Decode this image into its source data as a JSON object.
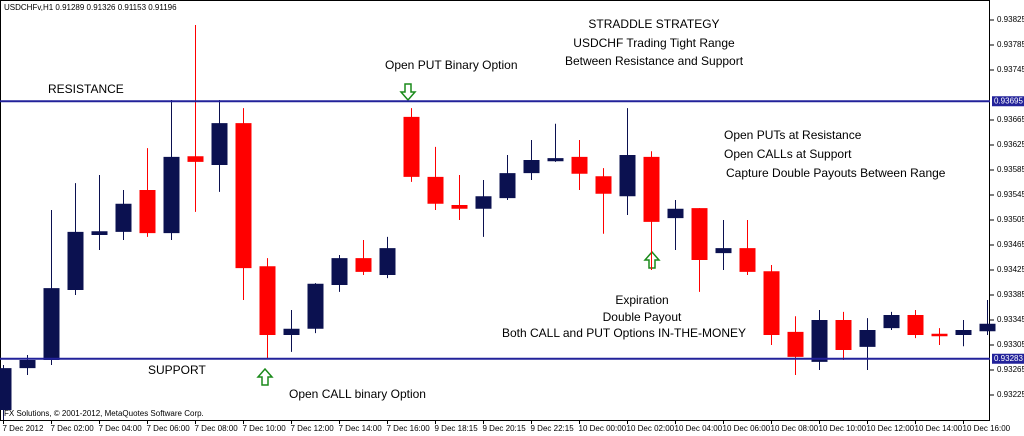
{
  "chart_data": {
    "type": "candlestick",
    "title": "USDCHFv,H1  0.91289 0.91326 0.91153 0.91196",
    "categories": [
      "7 Dec 2012",
      null,
      "7 Dec 02:00",
      null,
      "7 Dec 04:00",
      null,
      "7 Dec 06:00",
      null,
      "7 Dec 08:00",
      null,
      "7 Dec 10:00",
      null,
      "7 Dec 12:00",
      null,
      "7 Dec 14:00",
      null,
      "7 Dec 16:00",
      null,
      "9 Dec 18:15",
      null,
      "9 Dec 20:15",
      null,
      "9 Dec 22:15",
      null,
      "10 Dec 00:00",
      null,
      "10 Dec 02:00",
      null,
      "10 Dec 04:00",
      null,
      "10 Dec 06:00",
      null,
      "10 Dec 08:00",
      null,
      "10 Dec 10:00",
      null,
      "10 Dec 12:00",
      null,
      "10 Dec 14:00",
      null,
      "10 Dec 16:00",
      null
    ],
    "open": [
      0.93201,
      0.93268,
      0.93281,
      0.93393,
      0.93481,
      0.93486,
      0.93553,
      0.93484,
      0.93607,
      0.93593,
      0.9366,
      0.93431,
      0.93321,
      0.93331,
      0.93401,
      0.93444,
      0.93417,
      0.9367,
      0.93574,
      0.93529,
      0.93523,
      0.9354,
      0.9358,
      0.93599,
      0.93606,
      0.93575,
      0.93543,
      0.93606,
      0.93508,
      0.93524,
      0.93452,
      0.9346,
      0.93423,
      0.93326,
      0.93278,
      0.93345,
      0.93302,
      0.93332,
      0.93353,
      0.93323,
      0.93321,
      0.93327
    ],
    "high": [
      0.93273,
      0.93289,
      0.93521,
      0.93564,
      0.93577,
      0.93553,
      0.9362,
      0.93697,
      0.93817,
      0.93697,
      0.93684,
      0.93444,
      0.93361,
      0.93404,
      0.93449,
      0.93473,
      0.93478,
      0.93684,
      0.93622,
      0.93577,
      0.93569,
      0.93609,
      0.93633,
      0.93659,
      0.93633,
      0.93588,
      0.93684,
      0.93615,
      0.93537,
      0.93524,
      0.93505,
      0.93505,
      0.93433,
      0.93351,
      0.93361,
      0.93358,
      0.93348,
      0.93358,
      0.93361,
      0.93332,
      0.93345,
      0.93377
    ],
    "low": [
      0.93185,
      0.93257,
      0.93273,
      0.93385,
      0.93457,
      0.93473,
      0.93478,
      0.93473,
      0.93518,
      0.9355,
      0.93377,
      0.93284,
      0.93294,
      0.93324,
      0.9339,
      0.93417,
      0.93412,
      0.93566,
      0.93521,
      0.93505,
      0.93478,
      0.93537,
      0.93569,
      0.93598,
      0.93553,
      0.93483,
      0.93513,
      0.93425,
      0.93457,
      0.9339,
      0.93425,
      0.93417,
      0.93305,
      0.93257,
      0.93265,
      0.93281,
      0.93265,
      0.93329,
      0.93316,
      0.93305,
      0.93303,
      0.93321
    ],
    "close": [
      0.93268,
      0.93281,
      0.93396,
      0.93486,
      0.93487,
      0.93531,
      0.93484,
      0.93606,
      0.93598,
      0.9366,
      0.93428,
      0.93321,
      0.93331,
      0.93403,
      0.93444,
      0.93422,
      0.9346,
      0.93574,
      0.93531,
      0.93523,
      0.93543,
      0.9358,
      0.93601,
      0.93604,
      0.93579,
      0.93547,
      0.93609,
      0.93502,
      0.93523,
      0.93441,
      0.9346,
      0.93422,
      0.93321,
      0.93286,
      0.93345,
      0.93297,
      0.93329,
      0.93353,
      0.93321,
      0.93319,
      0.93329,
      0.93339
    ],
    "up_color": "#0b1150",
    "down_color": "#ff0000",
    "ylim": [
      0.93185,
      0.93857
    ],
    "yticks": [
      0.93825,
      0.93785,
      0.93745,
      0.93665,
      0.93625,
      0.93585,
      0.93545,
      0.93505,
      0.93465,
      0.93425,
      0.93385,
      0.93345,
      0.93305,
      0.93265,
      0.93225
    ],
    "lines": [
      {
        "name": "RESISTANCE",
        "value": 0.93695
      },
      {
        "name": "SUPPORT",
        "value": 0.93283
      }
    ],
    "line_color": "#22229a",
    "annotations": [
      "STRADDLE STRATEGY",
      "USDCHF Trading Tight Range",
      "Between Resistance and Support",
      "Open PUT Binary Option",
      "Open PUTs at Resistance",
      "Open CALLs at Support",
      "Capture Double Payouts Between Range",
      "Expiration",
      "Double Payout",
      "Both CALL and PUT Options IN-THE-MONEY",
      "Open CALL binary Option"
    ],
    "footer": "FX Solutions, © 2001-2012, MetaQuotes Software Corp."
  }
}
